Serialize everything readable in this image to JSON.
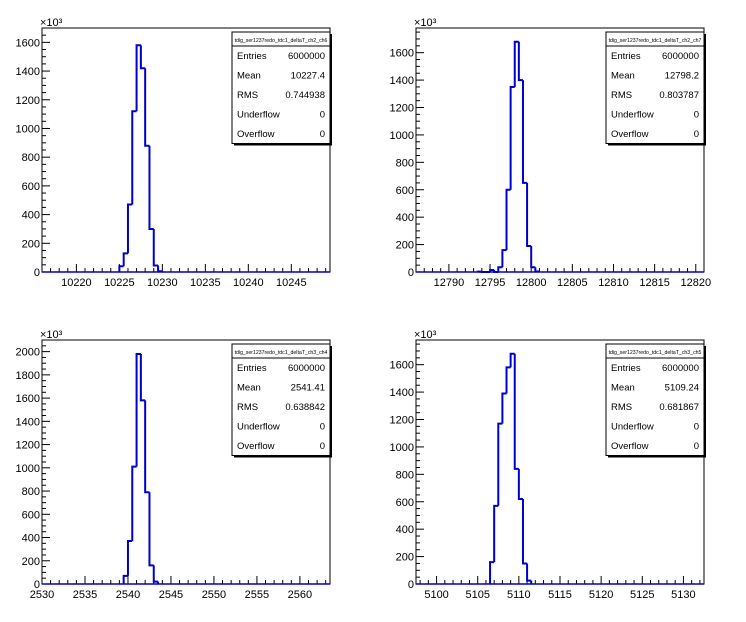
{
  "chart_data": [
    {
      "type": "histogram",
      "stats": {
        "title": "tdig_ser1237redo_tdc1_deltaT_ch2_ch6",
        "rows": [
          {
            "label": "Entries",
            "value": "6000000"
          },
          {
            "label": "Mean",
            "value": "10227.4"
          },
          {
            "label": "RMS",
            "value": "0.744938"
          },
          {
            "label": "Underflow",
            "value": "0"
          },
          {
            "label": "Overflow",
            "value": "0"
          }
        ]
      },
      "xlim": [
        10216,
        10249.5
      ],
      "ylim": [
        0,
        1700
      ],
      "yexp": "×10³",
      "xticks": [
        10220,
        10225,
        10230,
        10235,
        10240,
        10245
      ],
      "yticks": [
        0,
        200,
        400,
        600,
        800,
        1000,
        1200,
        1400,
        1600
      ],
      "bins": [
        [
          10225.0,
          40
        ],
        [
          10225.5,
          130
        ],
        [
          10226.0,
          470
        ],
        [
          10226.5,
          1120
        ],
        [
          10227.0,
          1580
        ],
        [
          10227.5,
          1420
        ],
        [
          10228.0,
          880
        ],
        [
          10228.5,
          300
        ],
        [
          10229.0,
          45
        ],
        [
          10229.5,
          5
        ]
      ],
      "color": "#0000cc"
    },
    {
      "type": "histogram",
      "stats": {
        "title": "tdig_ser1237redo_tdc1_deltaT_ch2_ch7",
        "rows": [
          {
            "label": "Entries",
            "value": "6000000"
          },
          {
            "label": "Mean",
            "value": "12798.2"
          },
          {
            "label": "RMS",
            "value": "0.803787"
          },
          {
            "label": "Underflow",
            "value": "0"
          },
          {
            "label": "Overflow",
            "value": "0"
          }
        ]
      },
      "xlim": [
        12786,
        12821
      ],
      "ylim": [
        0,
        1780
      ],
      "yexp": "×10³",
      "xticks": [
        12790,
        12795,
        12800,
        12805,
        12810,
        12815,
        12820
      ],
      "yticks": [
        0,
        200,
        400,
        600,
        800,
        1000,
        1200,
        1400,
        1600
      ],
      "bins": [
        [
          12793.5,
          3
        ],
        [
          12795.0,
          15
        ],
        [
          12796.0,
          35
        ],
        [
          12796.5,
          160
        ],
        [
          12797.0,
          600
        ],
        [
          12797.5,
          1350
        ],
        [
          12798.0,
          1680
        ],
        [
          12798.5,
          1400
        ],
        [
          12799.0,
          650
        ],
        [
          12799.5,
          190
        ],
        [
          12800.0,
          35
        ],
        [
          12800.5,
          4
        ]
      ],
      "color": "#0000cc"
    },
    {
      "type": "histogram",
      "stats": {
        "title": "tdig_ser1237redo_tdc1_deltaT_ch3_ch4",
        "rows": [
          {
            "label": "Entries",
            "value": "6000000"
          },
          {
            "label": "Mean",
            "value": "2541.41"
          },
          {
            "label": "RMS",
            "value": "0.638842"
          },
          {
            "label": "Underflow",
            "value": "0"
          },
          {
            "label": "Overflow",
            "value": "0"
          }
        ]
      },
      "xlim": [
        2530,
        2563.5
      ],
      "ylim": [
        0,
        2100
      ],
      "yexp": "×10³",
      "xticks": [
        2530,
        2535,
        2540,
        2545,
        2550,
        2555,
        2560
      ],
      "yticks": [
        0,
        200,
        400,
        600,
        800,
        1000,
        1200,
        1400,
        1600,
        1800,
        2000
      ],
      "bins": [
        [
          2539.5,
          70
        ],
        [
          2540.0,
          370
        ],
        [
          2540.5,
          1010
        ],
        [
          2541.0,
          1980
        ],
        [
          2541.5,
          1580
        ],
        [
          2542.0,
          790
        ],
        [
          2542.5,
          160
        ],
        [
          2543.0,
          20
        ]
      ],
      "color": "#0000cc"
    },
    {
      "type": "histogram",
      "stats": {
        "title": "tdig_ser1237redo_tdc1_deltaT_ch3_ch5",
        "rows": [
          {
            "label": "Entries",
            "value": "6000000"
          },
          {
            "label": "Mean",
            "value": "5109.24"
          },
          {
            "label": "RMS",
            "value": "0.681867"
          },
          {
            "label": "Underflow",
            "value": "0"
          },
          {
            "label": "Overflow",
            "value": "0"
          }
        ]
      },
      "xlim": [
        5097.5,
        5132.5
      ],
      "ylim": [
        0,
        1780
      ],
      "yexp": "×10³",
      "xticks": [
        5100,
        5105,
        5110,
        5115,
        5120,
        5125,
        5130
      ],
      "yticks": [
        0,
        200,
        400,
        600,
        800,
        1000,
        1200,
        1400,
        1600
      ],
      "bins": [
        [
          5106.5,
          160
        ],
        [
          5107.0,
          570
        ],
        [
          5107.5,
          1170
        ],
        [
          5108.0,
          1390
        ],
        [
          5108.5,
          1580
        ],
        [
          5109.0,
          1680
        ],
        [
          5109.5,
          840
        ],
        [
          5110.0,
          620
        ],
        [
          5110.5,
          150
        ],
        [
          5111.0,
          25
        ]
      ],
      "color": "#0000cc"
    }
  ]
}
